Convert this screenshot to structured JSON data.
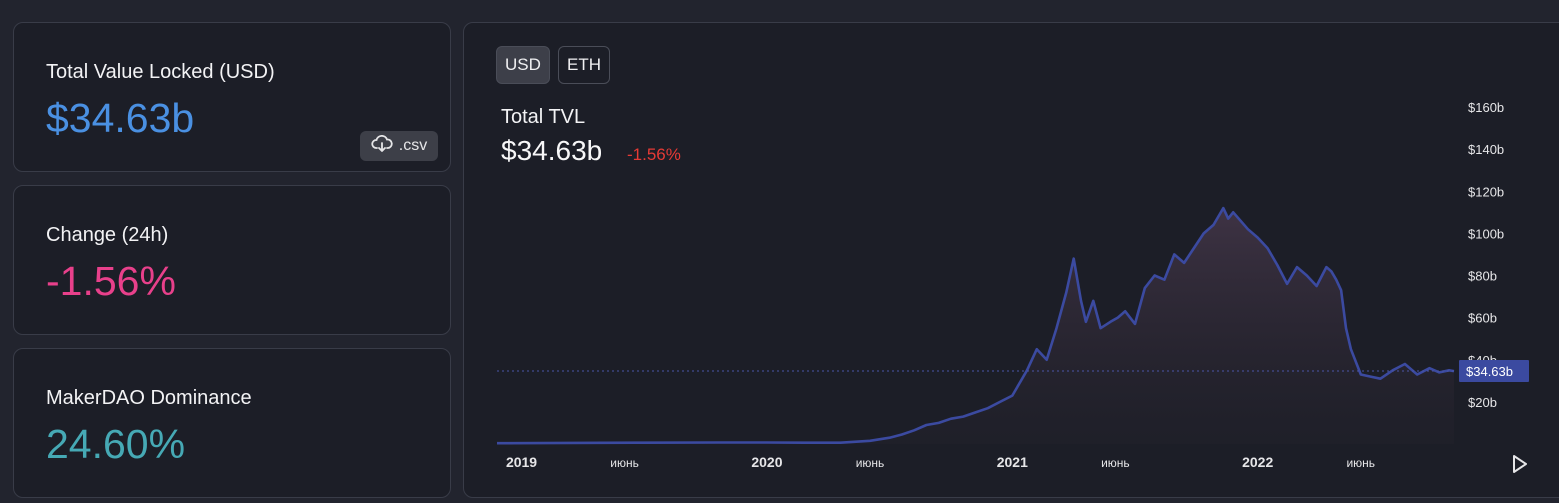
{
  "stats": {
    "tvl": {
      "title": "Total Value Locked (USD)",
      "value": "$34.63b",
      "color": "#4a90e2"
    },
    "csv_label": ".csv",
    "change": {
      "title": "Change (24h)",
      "value": "-1.56%",
      "color": "#e8408b"
    },
    "dominance": {
      "title": "MakerDAO Dominance",
      "value": "24.60%",
      "color": "#46a9b5"
    }
  },
  "chart": {
    "currency_toggle": {
      "usd": "USD",
      "eth": "ETH",
      "selected": "USD"
    },
    "title": "Total TVL",
    "current_value": "$34.63b",
    "change": "-1.56%",
    "change_color": "#e63a35",
    "line_color": "#3b4aa0",
    "icons": {
      "download": "cloud-download-icon",
      "play": "play-icon"
    }
  },
  "chart_data": {
    "type": "area",
    "title": "Total TVL",
    "y_axis_position": "right",
    "ylim": [
      0,
      160
    ],
    "y_ticks": [
      20,
      40,
      60,
      80,
      100,
      120,
      140,
      160
    ],
    "y_tick_labels": [
      "$20b",
      "$40b",
      "$60b",
      "$80b",
      "$100b",
      "$120b",
      "$140b",
      "$160b"
    ],
    "x_ticks": [
      {
        "t": 2019.0,
        "label": "2019"
      },
      {
        "t": 2019.42,
        "label": "июнь"
      },
      {
        "t": 2020.0,
        "label": "2020"
      },
      {
        "t": 2020.42,
        "label": "июнь"
      },
      {
        "t": 2021.0,
        "label": "2021"
      },
      {
        "t": 2021.42,
        "label": "июнь"
      },
      {
        "t": 2022.0,
        "label": "2022"
      },
      {
        "t": 2022.42,
        "label": "июнь"
      }
    ],
    "xlim": [
      2018.9,
      2022.8
    ],
    "current_price_label": "$34.63b",
    "current_value": 34.63,
    "series": [
      {
        "x": [
          2018.9,
          2019.2,
          2019.5,
          2019.8,
          2020.0,
          2020.15,
          2020.3,
          2020.42,
          2020.5,
          2020.55,
          2020.6,
          2020.65,
          2020.7,
          2020.75,
          2020.8,
          2020.85,
          2020.9,
          2020.95,
          2021.0,
          2021.03,
          2021.06,
          2021.1,
          2021.14,
          2021.18,
          2021.22,
          2021.25,
          2021.28,
          2021.3,
          2021.33,
          2021.36,
          2021.4,
          2021.43,
          2021.46,
          2021.5,
          2021.54,
          2021.58,
          2021.62,
          2021.66,
          2021.7,
          2021.74,
          2021.78,
          2021.82,
          2021.86,
          2021.88,
          2021.9,
          2021.93,
          2021.96,
          2022.0,
          2022.04,
          2022.08,
          2022.12,
          2022.16,
          2022.2,
          2022.24,
          2022.28,
          2022.3,
          2022.32,
          2022.34,
          2022.36,
          2022.38,
          2022.42,
          2022.46,
          2022.5,
          2022.55,
          2022.6,
          2022.65,
          2022.7,
          2022.74,
          2022.78,
          2022.8
        ],
        "y": [
          0.4,
          0.5,
          0.6,
          0.7,
          0.7,
          0.6,
          0.6,
          1.5,
          3,
          4.5,
          6.5,
          9,
          10,
          12,
          13,
          15,
          17,
          20,
          23,
          29,
          35,
          45,
          40,
          55,
          72,
          88,
          68,
          58,
          68,
          55,
          58,
          60,
          63,
          57,
          74,
          80,
          78,
          90,
          86,
          93,
          100,
          104,
          112,
          107,
          110,
          106,
          102,
          98,
          93,
          85,
          76,
          84,
          80,
          75,
          84,
          82,
          78,
          73,
          55,
          45,
          33,
          32,
          31,
          35,
          38,
          33,
          36,
          34,
          35,
          34.63
        ]
      }
    ]
  }
}
